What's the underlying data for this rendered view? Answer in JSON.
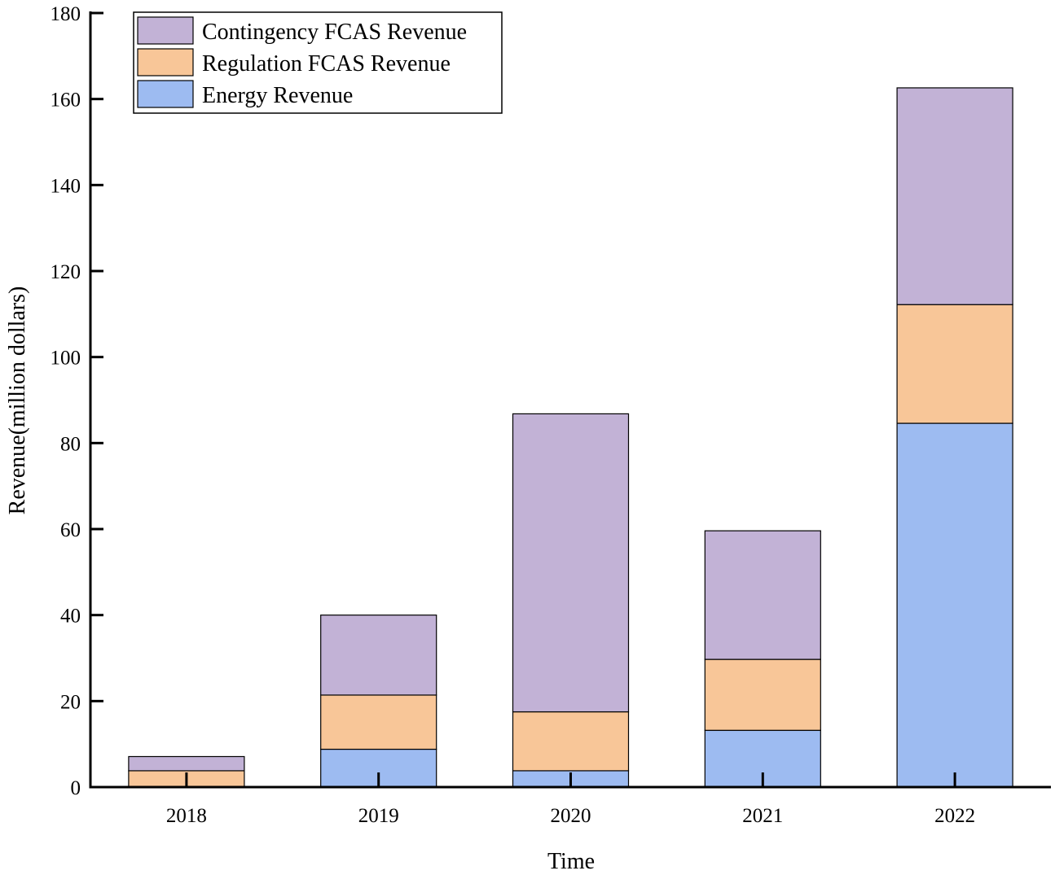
{
  "chart_data": {
    "type": "bar",
    "stacked": true,
    "title": "",
    "xlabel": "Time",
    "ylabel": "Revenue(million dollars)",
    "categories": [
      "2018",
      "2019",
      "2020",
      "2021",
      "2022"
    ],
    "series": [
      {
        "name": "Energy Revenue",
        "color": "#9DBBF1",
        "values": [
          0,
          8.8,
          3.8,
          13.2,
          84.6
        ]
      },
      {
        "name": "Regulation FCAS Revenue",
        "color": "#F8C698",
        "values": [
          3.8,
          12.6,
          13.7,
          16.5,
          27.6
        ]
      },
      {
        "name": "Contingency FCAS Revenue",
        "color": "#C2B2D6",
        "values": [
          3.3,
          18.6,
          69.3,
          29.9,
          50.4
        ]
      }
    ],
    "ylim": [
      0,
      180
    ],
    "yticks": [
      0,
      20,
      40,
      60,
      80,
      100,
      120,
      140,
      160,
      180
    ],
    "legend": {
      "position": "top-left",
      "order": [
        "Contingency FCAS Revenue",
        "Regulation FCAS Revenue",
        "Energy Revenue"
      ]
    },
    "grid": false
  }
}
